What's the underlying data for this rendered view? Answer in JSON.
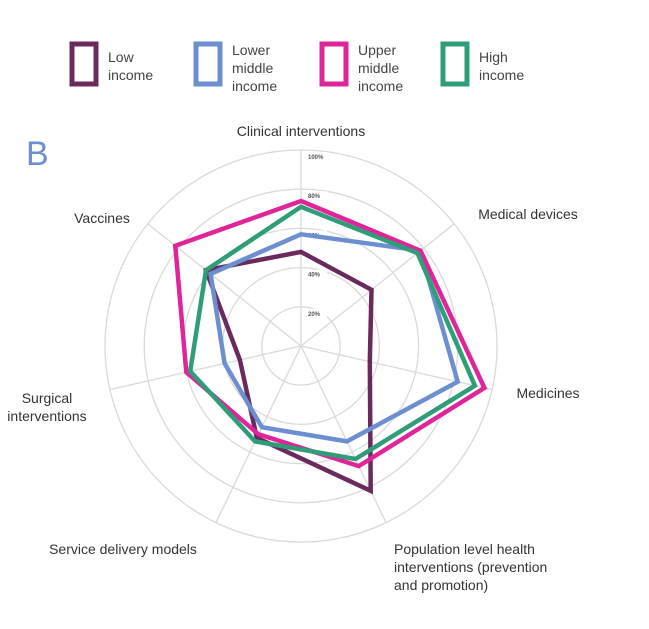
{
  "panel_label": "B",
  "chart_data": {
    "type": "radar",
    "axes": [
      [
        "Clinical interventions"
      ],
      [
        "Medical devices"
      ],
      [
        "Medicines"
      ],
      [
        "Population level health",
        "interventions (prevention",
        "and promotion)"
      ],
      [
        "Service delivery models"
      ],
      [
        "Surgical",
        "interventions"
      ],
      [
        "Vaccines"
      ]
    ],
    "ticks": [
      20,
      40,
      60,
      80,
      100
    ],
    "tick_labels": [
      "20%",
      "40%",
      "60%",
      "80%",
      "100%"
    ],
    "range": [
      0,
      100
    ],
    "legend": [
      {
        "lines": [
          "Low",
          "income"
        ],
        "color": "#6b2a5e"
      },
      {
        "lines": [
          "Lower",
          "middle",
          "income"
        ],
        "color": "#6b8fd0"
      },
      {
        "lines": [
          "Upper",
          "middle",
          "income"
        ],
        "color": "#e0249a"
      },
      {
        "lines": [
          "High",
          "income"
        ],
        "color": "#2f9e78"
      }
    ],
    "series": [
      {
        "name": "Low income",
        "color": "#6b2a5e",
        "values": [
          48,
          46,
          36,
          82,
          52,
          32,
          62
        ]
      },
      {
        "name": "Lower middle income",
        "color": "#6b8fd0",
        "values": [
          57,
          78,
          82,
          54,
          46,
          40,
          59
        ]
      },
      {
        "name": "Upper middle income",
        "color": "#e0249a",
        "values": [
          74,
          78,
          96,
          68,
          50,
          60,
          82
        ]
      },
      {
        "name": "High income",
        "color": "#2f9e78",
        "values": [
          71,
          76,
          91,
          64,
          54,
          58,
          62
        ]
      }
    ]
  }
}
